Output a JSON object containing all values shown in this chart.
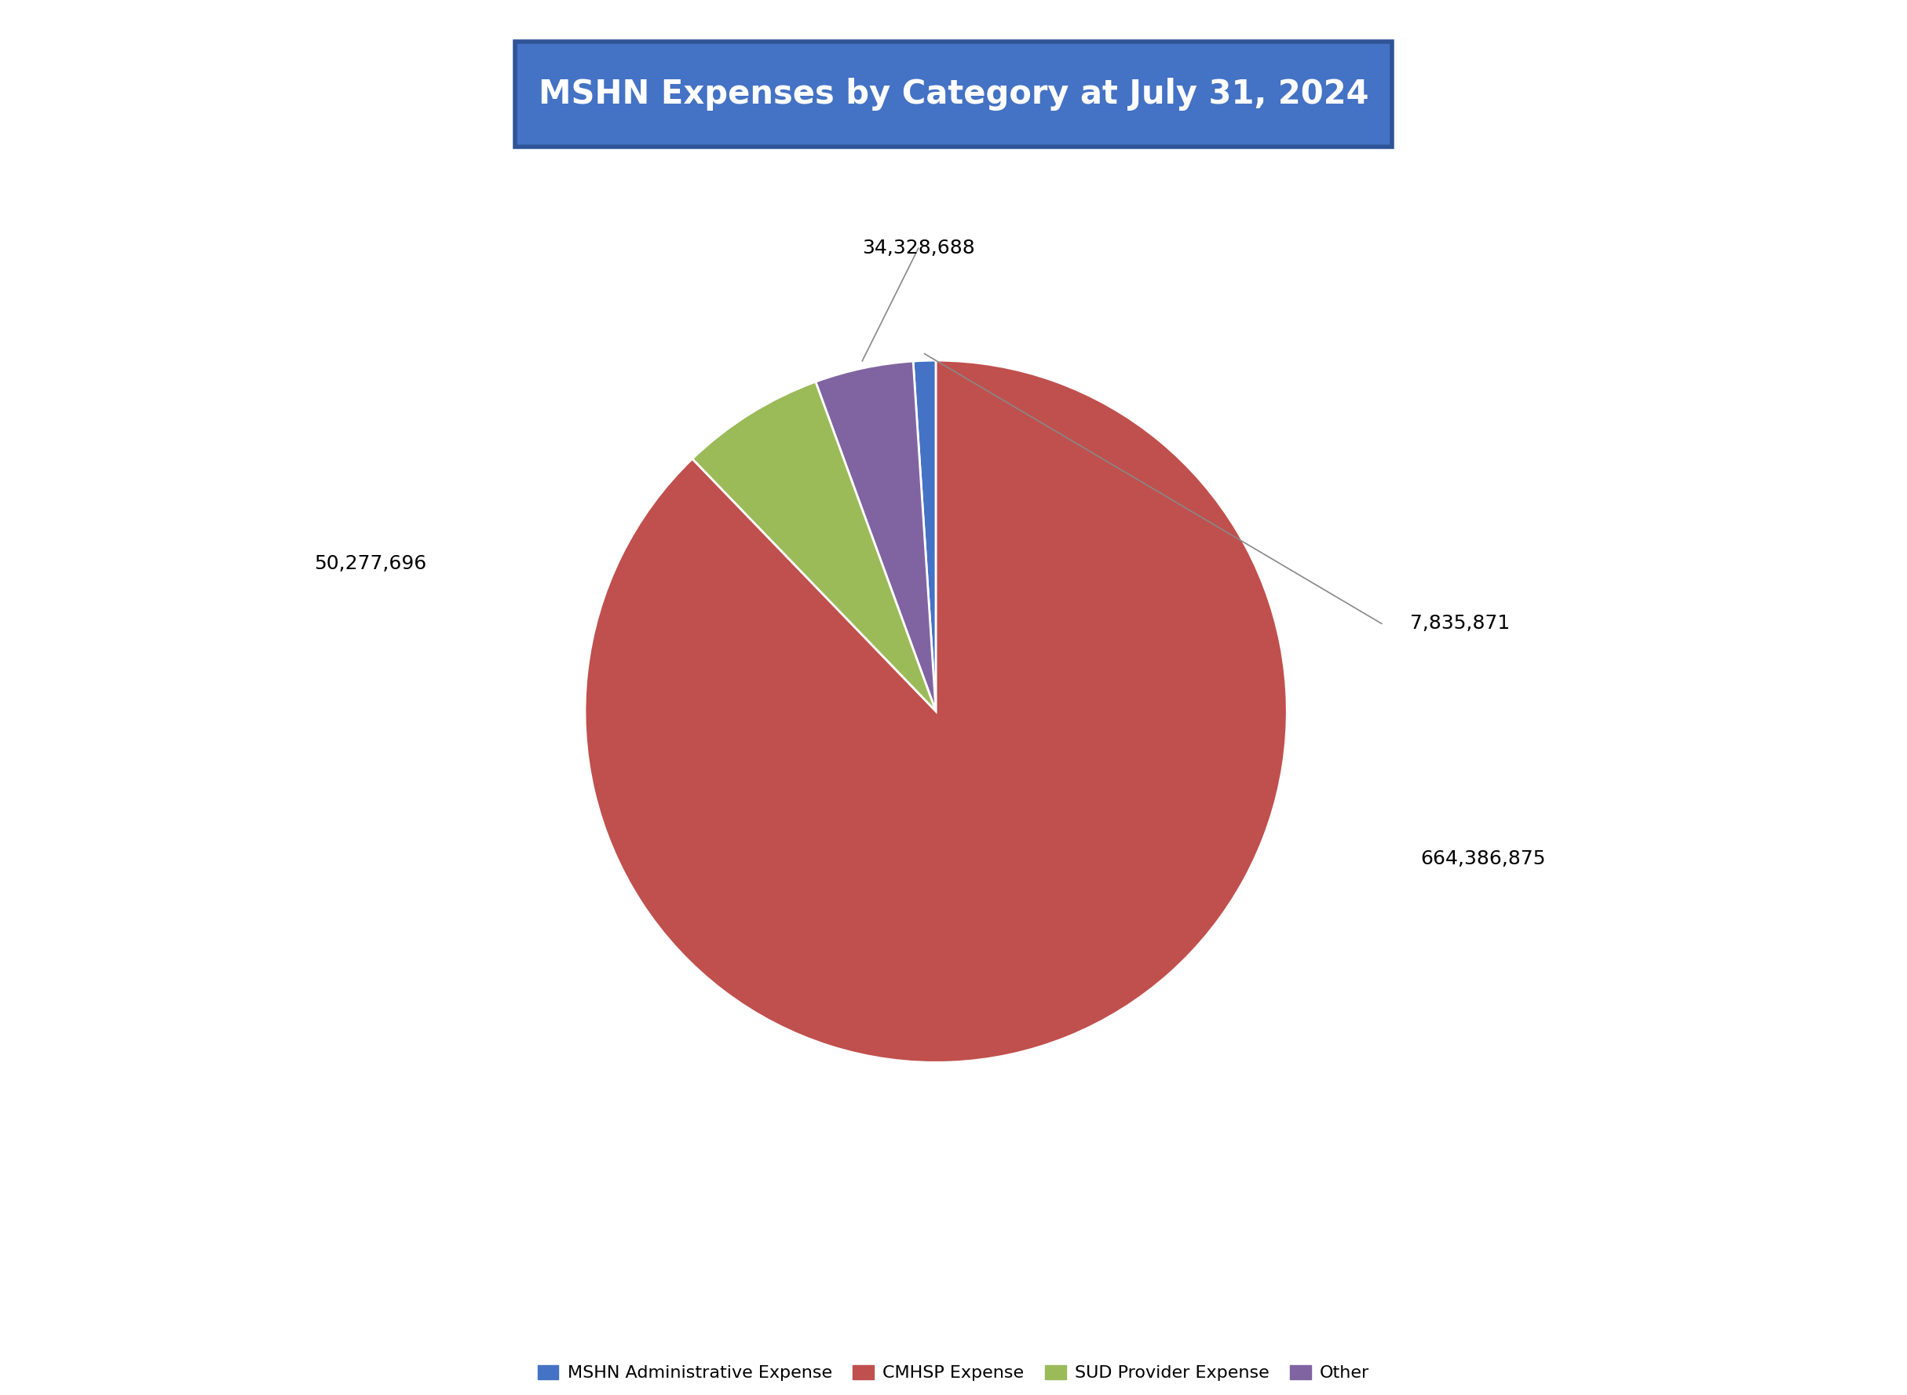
{
  "title": "MSHN Expenses by Category at July 31, 2024",
  "title_bg_color": "#4472C4",
  "title_text_color": "#FFFFFF",
  "title_border_color": "#2F5496",
  "slices": [
    {
      "label": "MSHN Administrative Expense",
      "value": 7835871,
      "color": "#4472C4"
    },
    {
      "label": "CMHSP Expense",
      "value": 664386875,
      "color": "#C0504D"
    },
    {
      "label": "SUD Provider Expense",
      "value": 50277696,
      "color": "#9BBB59"
    },
    {
      "label": "Other",
      "value": 34328688,
      "color": "#8064A2"
    }
  ],
  "legend_labels": [
    "MSHN Administrative Expense",
    "CMHSP Expense",
    "SUD Provider Expense",
    "Other"
  ],
  "legend_colors": [
    "#4472C4",
    "#C0504D",
    "#9BBB59",
    "#8064A2"
  ],
  "background_color": "#FFFFFF",
  "edge_color": "#FFFFFF",
  "label_fontsize": 18,
  "legend_fontsize": 16,
  "title_fontsize": 30
}
